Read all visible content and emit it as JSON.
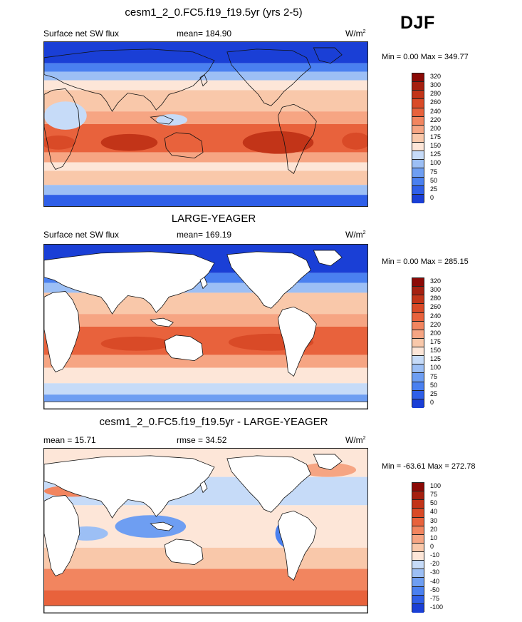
{
  "season": "DJF",
  "palette": [
    "#0a0a8c",
    "#1a3fd6",
    "#2f5fe8",
    "#4a80f0",
    "#6e9ef2",
    "#9cbff5",
    "#c6dbf8",
    "#fde6d8",
    "#f9c8aa",
    "#f6a583",
    "#f2855f",
    "#e8623c",
    "#d94a27",
    "#c23418",
    "#a52010",
    "#8b0a06"
  ],
  "panels": [
    {
      "title": "cesm1_2_0.FC5.f19_f19.5yr (yrs 2-5)",
      "left_label": "Surface net SW flux",
      "center_label": "mean= 184.90",
      "units_base": "W/m",
      "units_sup": "2",
      "minmax": "Min =   0.00 Max = 349.77",
      "levels": [
        "320",
        "300",
        "280",
        "260",
        "240",
        "220",
        "200",
        "175",
        "150",
        "125",
        "100",
        "75",
        "50",
        "25",
        "0"
      ],
      "field": "model"
    },
    {
      "title": "LARGE-YEAGER",
      "left_label": "Surface net SW flux",
      "center_label": "mean= 169.19",
      "units_base": "W/m",
      "units_sup": "2",
      "minmax": "Min =   0.00 Max = 285.15",
      "levels": [
        "320",
        "300",
        "280",
        "260",
        "240",
        "220",
        "200",
        "175",
        "150",
        "125",
        "100",
        "75",
        "50",
        "25",
        "0"
      ],
      "field": "obs"
    },
    {
      "title": "cesm1_2_0.FC5.f19_f19.5yr - LARGE-YEAGER",
      "left_label": "mean =  15.71",
      "center_label": "rmse =  34.52",
      "units_base": "W/m",
      "units_sup": "2",
      "minmax": "Min = -63.61 Max = 272.78",
      "levels": [
        "100",
        "75",
        "50",
        "40",
        "30",
        "20",
        "10",
        "0",
        "-10",
        "-20",
        "-30",
        "-40",
        "-50",
        "-75",
        "-100"
      ],
      "field": "diff"
    }
  ]
}
